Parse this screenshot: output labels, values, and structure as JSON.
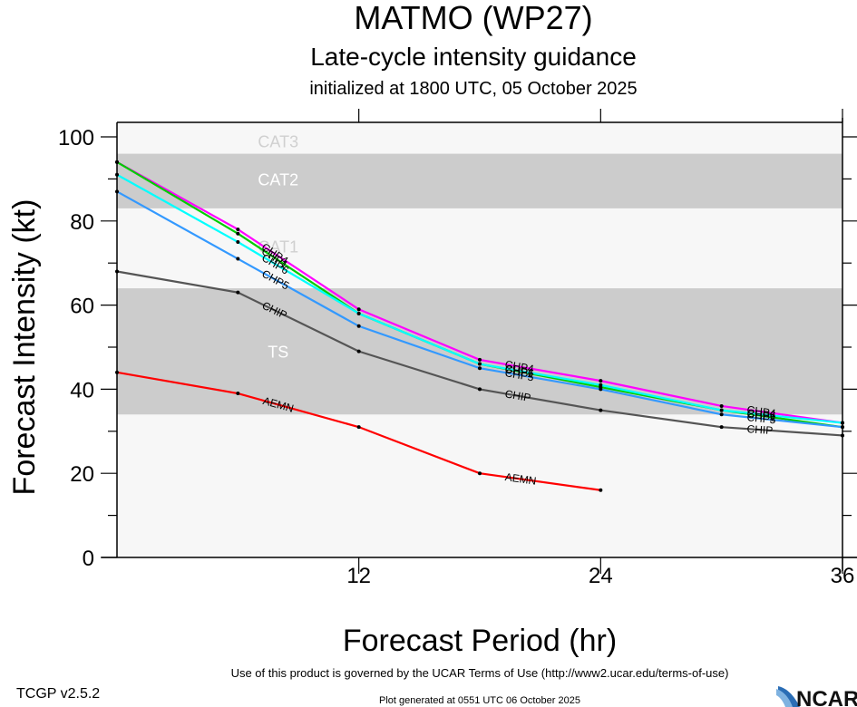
{
  "chart_data": {
    "type": "line",
    "title": "MATMO (WP27)",
    "subtitle": "Late-cycle intensity guidance",
    "init_text": "initialized at 1800 UTC, 05 October 2025",
    "xlabel": "Forecast Period (hr)",
    "ylabel": "Forecast Intensity (kt)",
    "xlim": [
      0,
      36
    ],
    "ylim": [
      0,
      100
    ],
    "x_ticks": [
      12,
      24,
      36
    ],
    "x_tick_labels": [
      "12",
      "24",
      "36"
    ],
    "y_ticks": [
      0,
      20,
      40,
      60,
      80,
      100
    ],
    "y_tick_labels": [
      "0",
      "20",
      "40",
      "60",
      "80",
      "100"
    ],
    "bands": [
      {
        "name": "TS",
        "from": 34,
        "to": 64,
        "color": "#cccccc",
        "label_color": "#ffffff",
        "label_x": 8,
        "label_y": 49
      },
      {
        "name": "CAT1",
        "from": 64,
        "to": 83,
        "color": "#f7f7f7",
        "label_color": "#d0d0d0",
        "label_x": 8,
        "label_y": 74
      },
      {
        "name": "CAT2",
        "from": 83,
        "to": 96,
        "color": "#cccccc",
        "label_color": "#ffffff",
        "label_x": 8,
        "label_y": 90
      },
      {
        "name": "CAT3",
        "from": 96,
        "to": 100,
        "color": "#f7f7f7",
        "label_color": "#d0d0d0",
        "label_x": 8,
        "label_y": 99
      }
    ],
    "series": [
      {
        "name": "CHP4",
        "color": "#ff00ff",
        "x": [
          0,
          6,
          12,
          18,
          24,
          30,
          36
        ],
        "values": [
          94,
          78,
          59,
          47,
          42,
          36,
          32
        ]
      },
      {
        "name": "CHP1",
        "color": "#00cc00",
        "x": [
          0,
          6,
          12,
          18,
          24,
          30,
          36
        ],
        "values": [
          94,
          77,
          58,
          46,
          40.5,
          35,
          31
        ]
      },
      {
        "name": "CHP6",
        "color": "#00ffff",
        "x": [
          0,
          6,
          12,
          18,
          24,
          30,
          36
        ],
        "values": [
          91,
          75,
          58,
          46,
          41,
          35,
          32
        ]
      },
      {
        "name": "CHP5",
        "color": "#3399ff",
        "x": [
          0,
          6,
          12,
          18,
          24,
          30,
          36
        ],
        "values": [
          87,
          71,
          55,
          45,
          40,
          34,
          31
        ]
      },
      {
        "name": "CHIP",
        "color": "#555555",
        "x": [
          0,
          6,
          12,
          18,
          24,
          30,
          36
        ],
        "values": [
          68,
          63,
          49,
          40,
          35,
          31,
          29
        ]
      },
      {
        "name": "AEMN",
        "color": "#ff0000",
        "x": [
          0,
          6,
          12,
          18,
          24
        ],
        "values": [
          44,
          39,
          31,
          20,
          16
        ]
      }
    ],
    "grid": false,
    "legend": "inline labels on lines"
  },
  "footer": {
    "terms": "Use of this product is governed by the UCAR Terms of Use (http://www2.ucar.edu/terms-of-use)",
    "version": "TCGP v2.5.2",
    "generated": "Plot generated at 0551 UTC   06 October 2025",
    "logo": "NCAR"
  }
}
